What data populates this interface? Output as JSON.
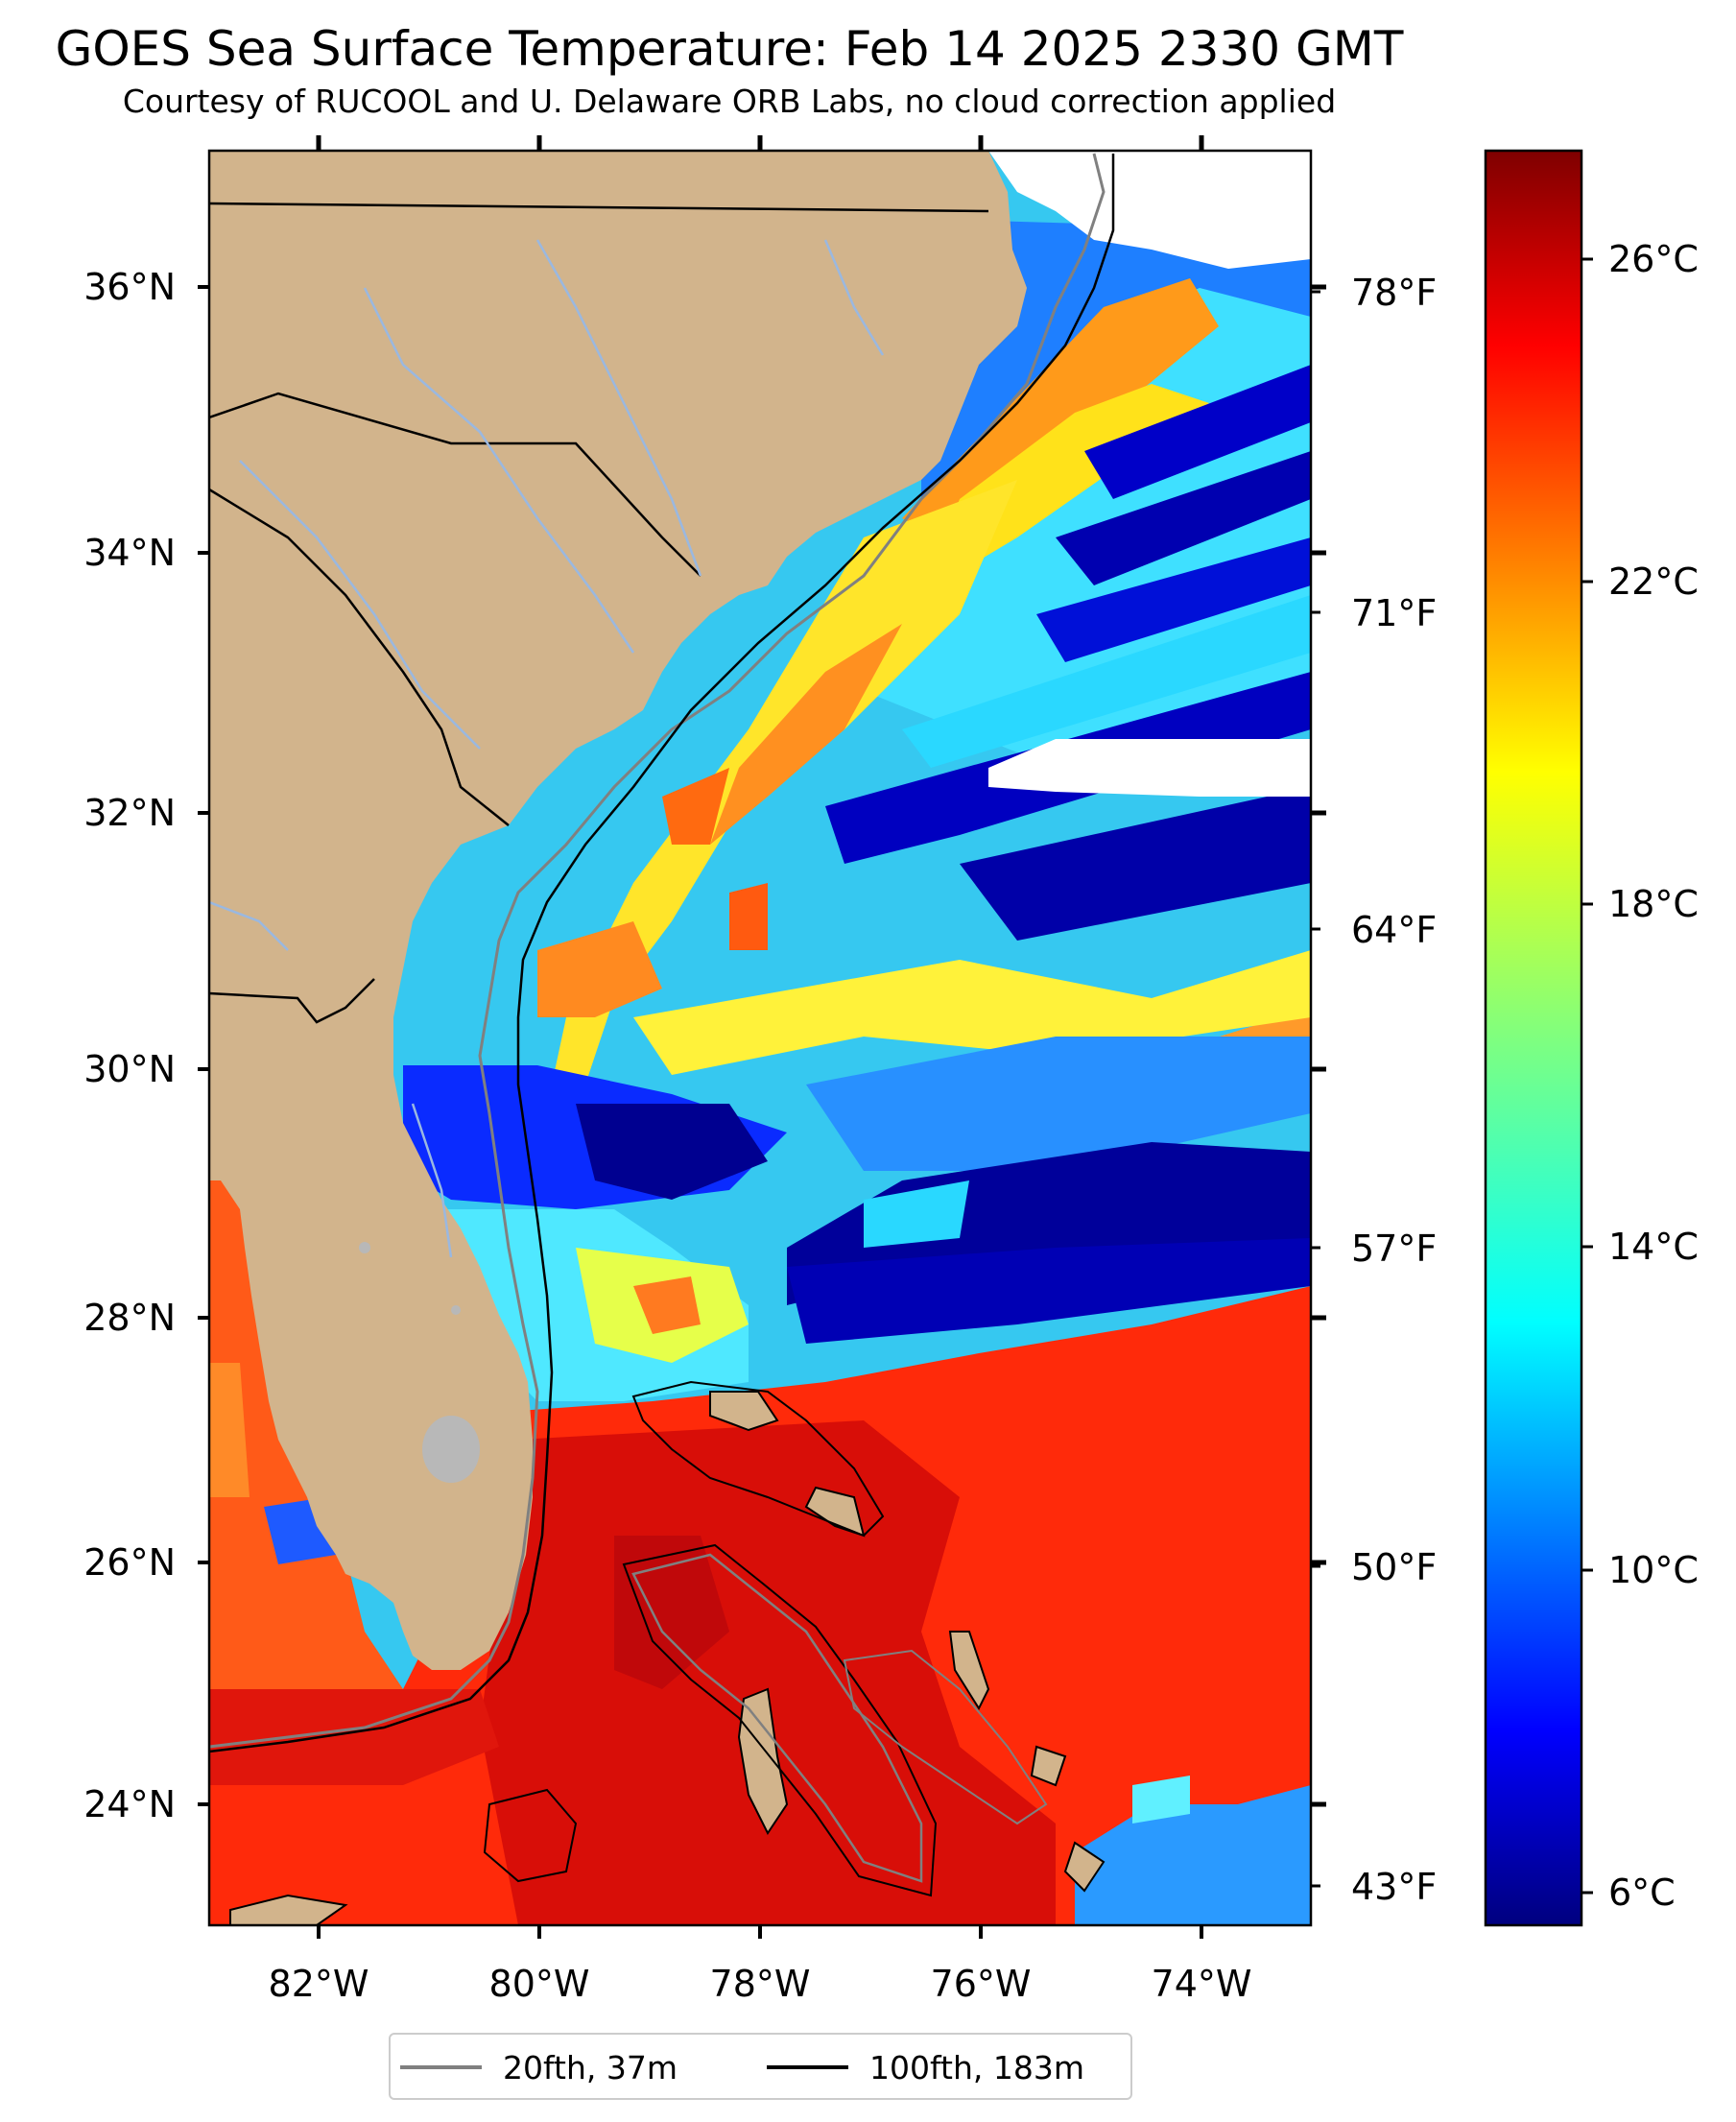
{
  "title": "GOES Sea Surface Temperature: Feb 14 2025 2330 GMT",
  "subtitle": "Courtesy of RUCOOL and U. Delaware ORB Labs, no cloud correction applied",
  "map": {
    "extent": {
      "lon_min": -83.0,
      "lon_max": -73.0,
      "lat_min": 23.1,
      "lat_max": 37.0
    },
    "lat_ticks": [
      "36°N",
      "34°N",
      "32°N",
      "30°N",
      "28°N",
      "26°N",
      "24°N"
    ],
    "lon_ticks": [
      "82°W",
      "80°W",
      "78°W",
      "76°W",
      "74°W"
    ],
    "fahrenheit_ticks": [
      "78°F",
      "71°F",
      "64°F",
      "57°F",
      "50°F",
      "43°F"
    ],
    "colors": {
      "land": "#d2b48c",
      "rivers": "#9ab8e0",
      "borders": "#000000",
      "lakes": "#b8b8b8",
      "cloud_mask": "#ffffff"
    }
  },
  "colorbar": {
    "colormap": "jet",
    "range_c": [
      5.5,
      27.5
    ],
    "ticks": [
      "26°C",
      "22°C",
      "18°C",
      "14°C",
      "10°C",
      "6°C"
    ]
  },
  "legend": {
    "items": [
      {
        "label": "20fth, 37m",
        "color": "#808080"
      },
      {
        "label": "100fth, 183m",
        "color": "#000000"
      }
    ]
  }
}
